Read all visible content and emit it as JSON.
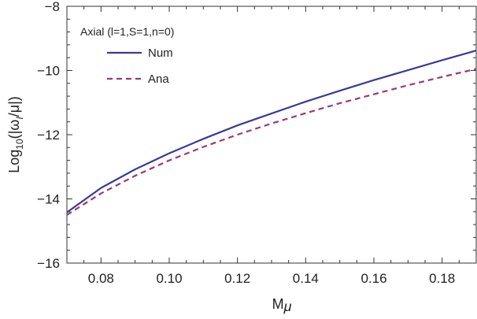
{
  "chart_data": {
    "type": "line",
    "legend_title": "Axial (l=1,S=1,n=0)",
    "legend_position": "top-left",
    "xlabel_main": "M",
    "xlabel_sub": "μ",
    "ylabel_prefix": "Log",
    "ylabel_sub": "10",
    "ylabel_body": "(|ω",
    "ylabel_body_sub": "I",
    "ylabel_suffix": "/μ|)",
    "xlim": [
      0.07,
      0.19
    ],
    "ylim": [
      -16,
      -8
    ],
    "xticks": [
      0.08,
      0.1,
      0.12,
      0.14,
      0.16,
      0.18
    ],
    "xtick_labels": [
      "0.08",
      "0.10",
      "0.12",
      "0.14",
      "0.16",
      "0.18"
    ],
    "yticks": [
      -16,
      -14,
      -12,
      -10,
      -8
    ],
    "ytick_labels": [
      "−16",
      "−14",
      "−12",
      "−10",
      "−8"
    ],
    "grid": false,
    "series": [
      {
        "name": "Num",
        "color": "#3b3b96",
        "dash": "solid",
        "x": [
          0.07,
          0.08,
          0.09,
          0.1,
          0.11,
          0.12,
          0.13,
          0.14,
          0.15,
          0.16,
          0.17,
          0.18,
          0.19
        ],
        "y": [
          -14.42,
          -13.66,
          -13.08,
          -12.58,
          -12.13,
          -11.71,
          -11.34,
          -10.97,
          -10.63,
          -10.3,
          -9.99,
          -9.68,
          -9.38
        ]
      },
      {
        "name": "Ana",
        "color": "#9b3a6e",
        "dash": "dashed",
        "x": [
          0.07,
          0.08,
          0.09,
          0.1,
          0.11,
          0.12,
          0.13,
          0.14,
          0.15,
          0.16,
          0.17,
          0.18,
          0.19
        ],
        "y": [
          -14.5,
          -13.83,
          -13.28,
          -12.8,
          -12.38,
          -12.0,
          -11.65,
          -11.33,
          -11.02,
          -10.74,
          -10.46,
          -10.2,
          -9.95
        ]
      }
    ]
  }
}
